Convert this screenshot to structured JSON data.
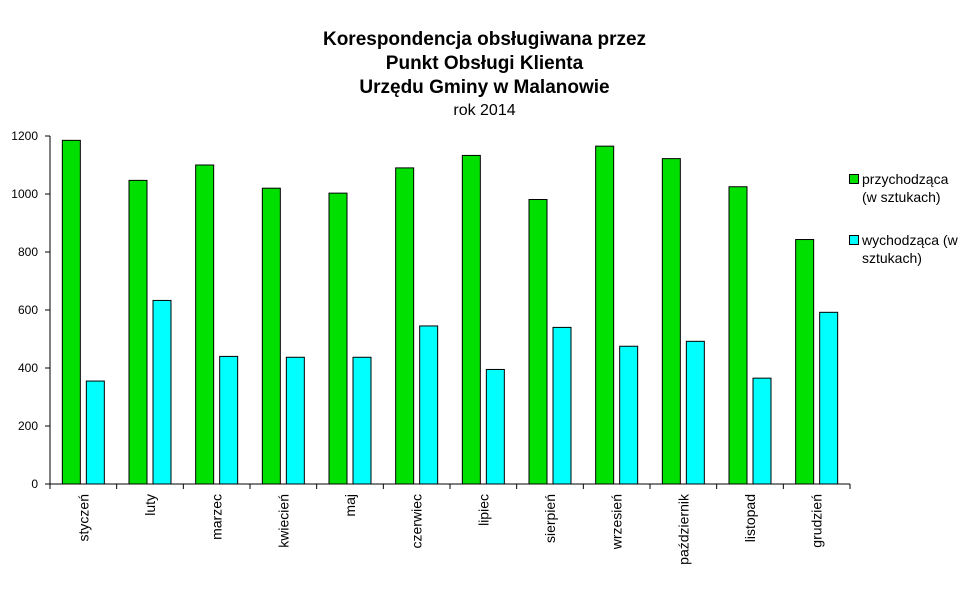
{
  "chart_data": {
    "type": "bar",
    "title_lines": [
      "Korespondencja obsługiwana przez",
      "Punkt Obsługi Klienta",
      "Urzędu Gminy w Malanowie"
    ],
    "subtitle": "rok 2014",
    "categories": [
      "styczeń",
      "luty",
      "marzec",
      "kwiecień",
      "maj",
      "czerwiec",
      "lipiec",
      "sierpień",
      "wrzesień",
      "październik",
      "listopad",
      "grudzień"
    ],
    "series": [
      {
        "name": "przychodząca (w sztukach)",
        "legend_lines": [
          "przychodząca",
          "(w sztukach)"
        ],
        "color": "#00e000",
        "values": [
          1185,
          1047,
          1100,
          1020,
          1003,
          1090,
          1133,
          981,
          1165,
          1122,
          1025,
          843
        ]
      },
      {
        "name": "wychodząca (w sztukach)",
        "legend_lines": [
          "wychodząca (w",
          "sztukach)"
        ],
        "color": "#00ffff",
        "values": [
          355,
          633,
          440,
          437,
          437,
          545,
          395,
          540,
          475,
          492,
          365,
          592
        ]
      }
    ],
    "ylim": [
      0,
      1200
    ],
    "yticks": [
      0,
      200,
      400,
      600,
      800,
      1000,
      1200
    ],
    "grid": false,
    "legend_position": "right"
  }
}
